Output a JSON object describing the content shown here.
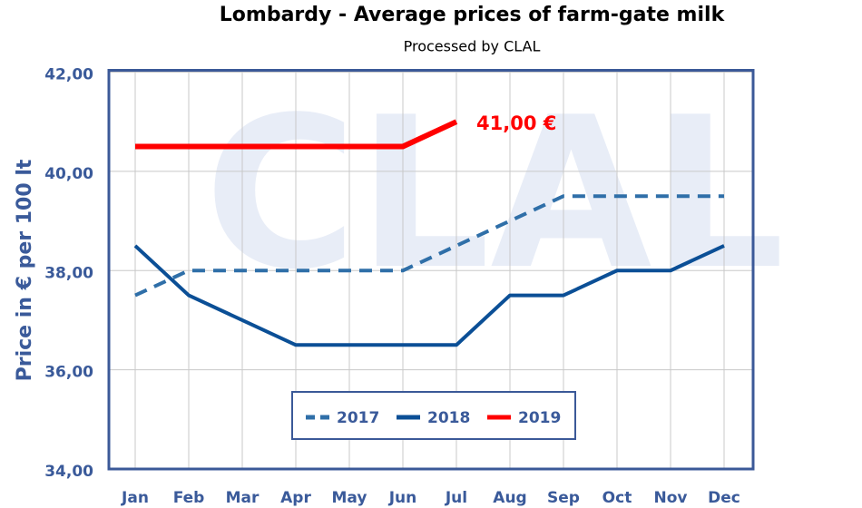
{
  "chart_data": {
    "type": "line",
    "title": "Lombardy - Average prices of farm-gate milk",
    "subtitle": "Processed by CLAL",
    "watermark": "CLAL",
    "y_label": "Price in € per 100 lt",
    "categories": [
      "Jan",
      "Feb",
      "Mar",
      "Apr",
      "May",
      "Jun",
      "Jul",
      "Aug",
      "Sep",
      "Oct",
      "Nov",
      "Dec"
    ],
    "series": [
      {
        "name": "2017",
        "color": "#2f6fa8",
        "dashed": true,
        "values": [
          37.5,
          38.0,
          38.0,
          38.0,
          38.0,
          38.0,
          38.5,
          39.0,
          39.5,
          39.5,
          39.5,
          39.5
        ]
      },
      {
        "name": "2018",
        "color": "#0b4f96",
        "dashed": false,
        "values": [
          38.5,
          37.5,
          37.0,
          36.5,
          36.5,
          36.5,
          36.5,
          37.5,
          37.5,
          38.0,
          38.0,
          38.5
        ]
      },
      {
        "name": "2019",
        "color": "#ff0000",
        "dashed": false,
        "values": [
          40.5,
          40.5,
          40.5,
          40.5,
          40.5,
          40.5,
          41.0,
          null,
          null,
          null,
          null,
          null
        ]
      }
    ],
    "annotation": {
      "text": "41,00 €",
      "series": 2,
      "index": 6
    },
    "ylim": [
      34,
      42
    ],
    "yticks": [
      {
        "value": 34,
        "label": "34,00"
      },
      {
        "value": 36,
        "label": "36,00"
      },
      {
        "value": 38,
        "label": "38,00"
      },
      {
        "value": 40,
        "label": "40,00"
      },
      {
        "value": 42,
        "label": "42,00"
      }
    ],
    "grid": true,
    "legend": "lower center"
  }
}
